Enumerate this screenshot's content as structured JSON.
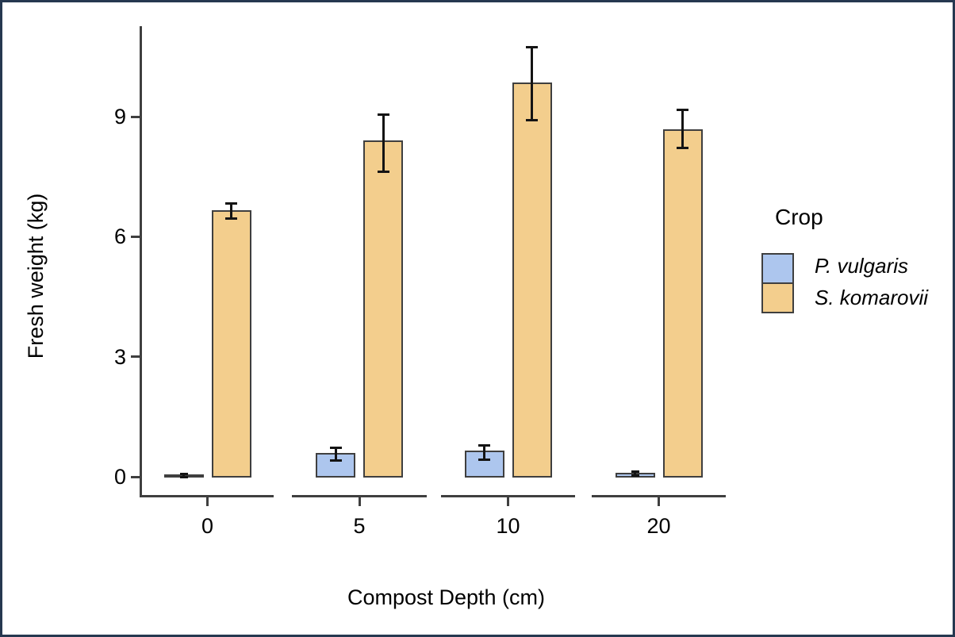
{
  "frame": {
    "border_color": "#263850",
    "background": "#FFFFFF"
  },
  "chart_data": {
    "type": "bar",
    "title": "",
    "xlabel": "Compost Depth (cm)",
    "ylabel": "Fresh weight (kg)",
    "categories": [
      "0",
      "5",
      "10",
      "20"
    ],
    "y_ticks": [
      0,
      3,
      6,
      9
    ],
    "ylim": [
      0,
      11.2
    ],
    "grid": false,
    "legend": {
      "title": "Crop",
      "position": "right"
    },
    "series": [
      {
        "name": "P. vulgaris",
        "color": "#ADC6EE",
        "values": [
          0.02,
          0.57,
          0.62,
          0.06
        ],
        "errors_low": [
          0.0,
          0.41,
          0.43,
          0.02
        ],
        "errors_high": [
          0.06,
          0.72,
          0.78,
          0.12
        ]
      },
      {
        "name": "S. komarovii",
        "color": "#F3CE8D",
        "values": [
          6.64,
          8.37,
          9.83,
          8.66
        ],
        "errors_low": [
          6.46,
          7.63,
          8.92,
          8.21
        ],
        "errors_high": [
          6.83,
          9.06,
          10.73,
          9.16
        ]
      }
    ],
    "styles": {
      "bar_border": "#3F3F3F",
      "axis": "#3F3F3F",
      "error_bar": "#141414",
      "text": "#000000"
    }
  }
}
